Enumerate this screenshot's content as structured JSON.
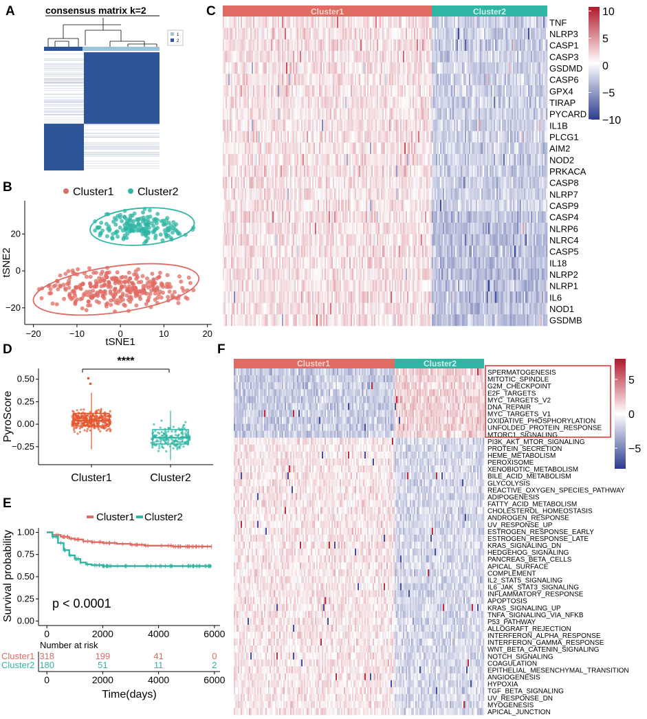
{
  "colors": {
    "cluster1": "#e06b63",
    "cluster2": "#2fb5a4",
    "heat_high": "#b2182b",
    "heat_low": "#2c3b8f",
    "consensus": "#2d5597",
    "box1": "#e4562c",
    "highlight": "#e23a3a"
  },
  "panels": {
    "A": "A",
    "B": "B",
    "C": "C",
    "D": "D",
    "E": "E",
    "F": "F"
  },
  "chart_data": [
    {
      "id": "A",
      "type": "heatmap",
      "title": "consensus matrix k=2",
      "legend": [
        "1",
        "2"
      ],
      "k": 2
    },
    {
      "id": "B",
      "type": "scatter",
      "xlabel": "tSNE1",
      "ylabel": "tSNE2",
      "xlim": [
        -22,
        21
      ],
      "ylim": [
        -29,
        38
      ],
      "xticks": [
        -20,
        -10,
        0,
        10,
        20
      ],
      "yticks": [
        -20,
        0,
        20
      ],
      "legend": [
        "Cluster1",
        "Cluster2"
      ],
      "series": [
        {
          "name": "Cluster1",
          "n": 318,
          "center": [
            -1,
            -10
          ],
          "radius": [
            16,
            10
          ]
        },
        {
          "name": "Cluster2",
          "n": 180,
          "center": [
            5,
            24
          ],
          "radius": [
            10,
            8
          ]
        }
      ]
    },
    {
      "id": "C",
      "type": "heatmap",
      "columns": [
        "Cluster1",
        "Cluster2"
      ],
      "rows": [
        "TNF",
        "NLRP3",
        "CASP1",
        "CASP3",
        "GSDMD",
        "CASP6",
        "GPX4",
        "TIRAP",
        "PYCARD",
        "IL1B",
        "PLCG1",
        "AIM2",
        "NOD2",
        "PRKACA",
        "CASP8",
        "NLRP7",
        "CASP9",
        "CASP4",
        "NLRP6",
        "NLRC4",
        "CASP5",
        "IL18",
        "NLRP2",
        "NLRP1",
        "IL6",
        "NOD1",
        "GSDMB"
      ],
      "scale": {
        "ticks": [
          "10",
          "5",
          "0",
          "−5",
          "−10"
        ],
        "range": [
          -10,
          10
        ]
      }
    },
    {
      "id": "D",
      "type": "box",
      "ylabel": "PyroScore",
      "categories": [
        "Cluster1",
        "Cluster2"
      ],
      "ylim": [
        -0.45,
        0.62
      ],
      "yticks": [
        "0.50",
        "0.25",
        "0.00",
        "−0.25"
      ],
      "ytick_values": [
        0.5,
        0.25,
        0,
        -0.25
      ],
      "significance": "****",
      "boxes": [
        {
          "name": "Cluster1",
          "q1": -0.02,
          "median": 0.04,
          "q3": 0.12,
          "whisker_low": -0.28,
          "whisker_high": 0.35,
          "outliers": [
            0.45,
            0.51
          ]
        },
        {
          "name": "Cluster2",
          "q1": -0.22,
          "median": -0.15,
          "q3": -0.06,
          "whisker_low": -0.4,
          "whisker_high": 0.15,
          "outliers": []
        }
      ]
    },
    {
      "id": "E",
      "type": "line",
      "xlabel": "Time(days)",
      "ylabel": "Survival probability",
      "xlim": [
        -300,
        6200
      ],
      "ylim": [
        -0.05,
        1.05
      ],
      "xticks": [
        0,
        2000,
        4000,
        6000
      ],
      "yticks": [
        "1.00",
        "0.75",
        "0.50",
        "0.25",
        "0.00"
      ],
      "ytick_values": [
        1,
        0.75,
        0.5,
        0.25,
        0
      ],
      "pvalue": "p < 0.0001",
      "series": [
        {
          "name": "Cluster1",
          "x": [
            0,
            200,
            500,
            800,
            1000,
            1300,
            1600,
            2000,
            2500,
            3000,
            3500,
            4000,
            4500,
            5000,
            5500,
            5900
          ],
          "y": [
            1,
            0.97,
            0.95,
            0.93,
            0.92,
            0.9,
            0.89,
            0.88,
            0.87,
            0.86,
            0.85,
            0.85,
            0.84,
            0.84,
            0.84,
            0.84
          ]
        },
        {
          "name": "Cluster2",
          "x": [
            0,
            200,
            400,
            600,
            800,
            1000,
            1200,
            1400,
            1600,
            2000,
            2500,
            3000,
            4000,
            5000,
            5900
          ],
          "y": [
            1,
            0.95,
            0.88,
            0.8,
            0.74,
            0.7,
            0.66,
            0.64,
            0.63,
            0.62,
            0.62,
            0.62,
            0.62,
            0.62,
            0.62
          ]
        }
      ],
      "risk_table": {
        "title": "Number at risk",
        "rows": [
          {
            "name": "Cluster1",
            "values": [
              "318",
              "199",
              "41",
              "0"
            ]
          },
          {
            "name": "Cluster2",
            "values": [
              "180",
              "51",
              "11",
              "2"
            ]
          }
        ]
      }
    },
    {
      "id": "F",
      "type": "heatmap",
      "columns": [
        "Cluster1",
        "Cluster2"
      ],
      "rows": [
        "SPERMATOGENESIS",
        "MITOTIC_SPINDLE",
        "G2M_CHECKPOINT",
        "E2F_TARGETS",
        "MYC_TARGETS_V2",
        "DNA_REPAIR",
        "MYC_TARGETS_V1",
        "OXIDATIVE_PHOSPHORYLATION",
        "UNFOLDED_PROTEIN_RESPONSE",
        "MTORC1_SIGNALING",
        "PI3K_AKT_MTOR_SIGNALING",
        "PROTEIN_SECRETION",
        "HEME_METABOLISM",
        "PEROXISOME",
        "XENOBIOTIC_METABOLISM",
        "BILE_ACID_METABOLISM",
        "GLYCOLYSIS",
        "REACTIVE_OXYGEN_SPECIES_PATHWAY",
        "ADIPOGENESIS",
        "FATTY_ACID_METABOLISM",
        "CHOLESTEROL_HOMEOSTASIS",
        "ANDROGEN_RESPONSE",
        "UV_RESPONSE_UP",
        "ESTROGEN_RESPONSE_EARLY",
        "ESTROGEN_RESPONSE_LATE",
        "KRAS_SIGNALING_DN",
        "HEDGEHOG_SIGNALING",
        "PANCREAS_BETA_CELLS",
        "APICAL_SURFACE",
        "COMPLEMENT",
        "IL2_STAT5_SIGNALING",
        "IL6_JAK_STAT3_SIGNALING",
        "INFLAMMATORY_RESPONSE",
        "APOPTOSIS",
        "KRAS_SIGNALING_UP",
        "TNFA_SIGNALING_VIA_NFKB",
        "P53_PATHWAY",
        "ALLOGRAFT_REJECTION",
        "INTERFERON_ALPHA_RESPONSE",
        "INTERFERON_GAMMA_RESPONSE",
        "WNT_BETA_CATENIN_SIGNALING",
        "NOTCH_SIGNALING",
        "COAGULATION",
        "EPITHELIAL_MESENCHYMAL_TRANSITION",
        "ANGIOGENESIS",
        "HYPOXIA",
        "TGF_BETA_SIGNALING",
        "UV_RESPONSE_DN",
        "MYOGENESIS",
        "APICAL_JUNCTION"
      ],
      "highlighted_count": 10,
      "scale": {
        "ticks": [
          "5",
          "0",
          "−5"
        ],
        "range": [
          -8,
          8
        ]
      }
    }
  ]
}
